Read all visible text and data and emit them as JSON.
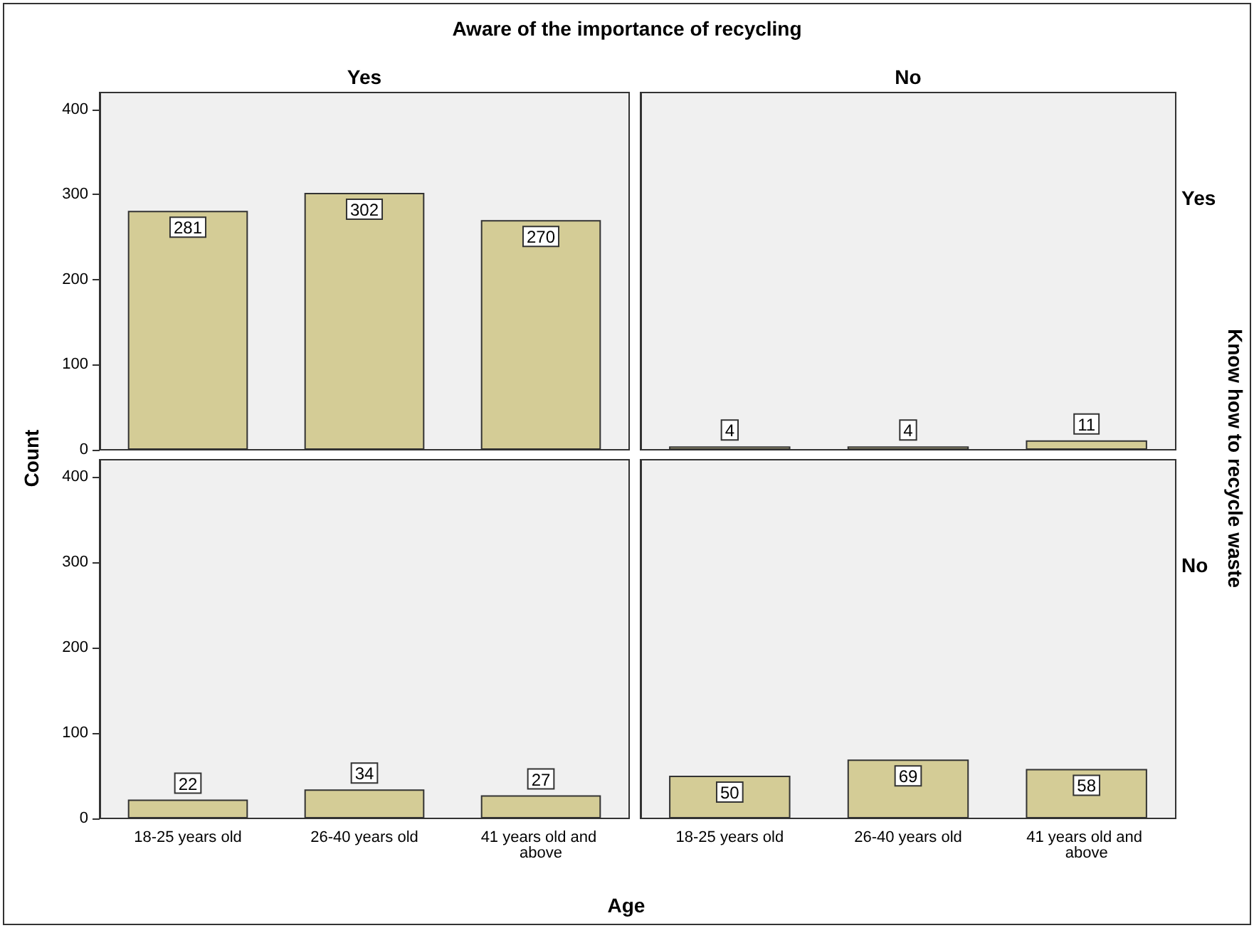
{
  "chart_data": [
    {
      "type": "bar",
      "title": "Aware of the importance of recycling",
      "subtitle": "Yes",
      "ylabel": "Count",
      "categories": [
        "18-25 years old",
        "26-40 years old",
        "41 years old and above"
      ],
      "values": [
        281,
        302,
        270
      ],
      "color": "#d4cc96",
      "ylim": [
        0,
        420
      ],
      "yticks": [
        0,
        100,
        200,
        300,
        400
      ],
      "grid": false,
      "data_labels": true,
      "tick_labels": "y"
    },
    {
      "type": "bar",
      "subtitle": "No",
      "y2label": "Know how to recycle waste",
      "annotations": [
        "Yes"
      ],
      "categories": [
        "18-25 years old",
        "26-40 years old",
        "41 years old and above"
      ],
      "values": [
        4,
        4,
        11
      ],
      "color": "#d4cc96",
      "ylim": [
        0,
        420
      ],
      "yticks": [
        0,
        100,
        200,
        300,
        400
      ],
      "grid": false,
      "data_labels": true,
      "tick_labels": false
    },
    {
      "type": "bar",
      "xlabel": "Age",
      "categories": [
        "18-25 years old",
        "26-40 years old",
        "41 years old and above"
      ],
      "values": [
        22,
        34,
        27
      ],
      "color": "#d4cc96",
      "ylim": [
        0,
        420
      ],
      "yticks": [
        0,
        100,
        200,
        300,
        400
      ],
      "grid": false,
      "data_labels": true
    },
    {
      "type": "bar",
      "annotations": [
        "No"
      ],
      "categories": [
        "18-25 years old",
        "26-40 years old",
        "41 years old and above"
      ],
      "values": [
        50,
        69,
        58
      ],
      "color": "#d4cc96",
      "ylim": [
        0,
        420
      ],
      "yticks": [
        0,
        100,
        200,
        300,
        400
      ],
      "grid": false,
      "data_labels": true,
      "tick_labels": "x"
    }
  ]
}
